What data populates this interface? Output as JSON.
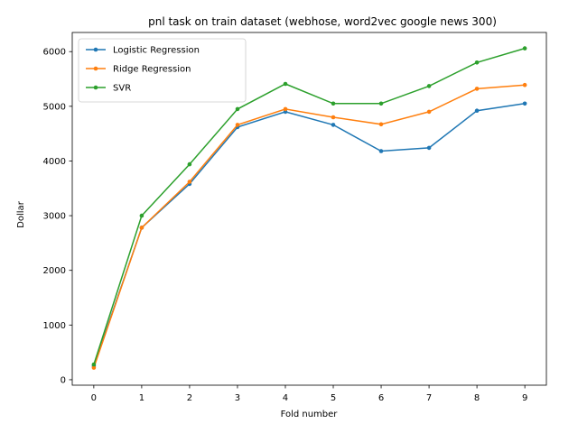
{
  "chart_data": {
    "type": "line",
    "title": "pnl task on train dataset (webhose, word2vec google news 300)",
    "xlabel": "Fold number",
    "ylabel": "Dollar",
    "x": [
      0,
      1,
      2,
      3,
      4,
      5,
      6,
      7,
      8,
      9
    ],
    "xticks": [
      "0",
      "1",
      "2",
      "3",
      "4",
      "5",
      "6",
      "7",
      "8",
      "9"
    ],
    "xlim": [
      -0.45,
      9.45
    ],
    "ylim": [
      -100,
      6350
    ],
    "yticks": [
      0,
      1000,
      2000,
      3000,
      4000,
      5000,
      6000
    ],
    "ytick_labels": [
      "0",
      "1000",
      "2000",
      "3000",
      "4000",
      "5000",
      "6000"
    ],
    "grid": false,
    "legend_position": "top-left",
    "series": [
      {
        "name": "Logistic Regression",
        "color": "#1f77b4",
        "values": [
          250,
          2780,
          3580,
          4620,
          4900,
          4660,
          4180,
          4240,
          4920,
          5050
        ]
      },
      {
        "name": "Ridge Regression",
        "color": "#ff7f0e",
        "values": [
          220,
          2780,
          3620,
          4660,
          4950,
          4800,
          4670,
          4900,
          5320,
          5390
        ]
      },
      {
        "name": "SVR",
        "color": "#2ca02c",
        "values": [
          280,
          3000,
          3940,
          4950,
          5410,
          5050,
          5050,
          5370,
          5800,
          6060
        ]
      }
    ]
  }
}
